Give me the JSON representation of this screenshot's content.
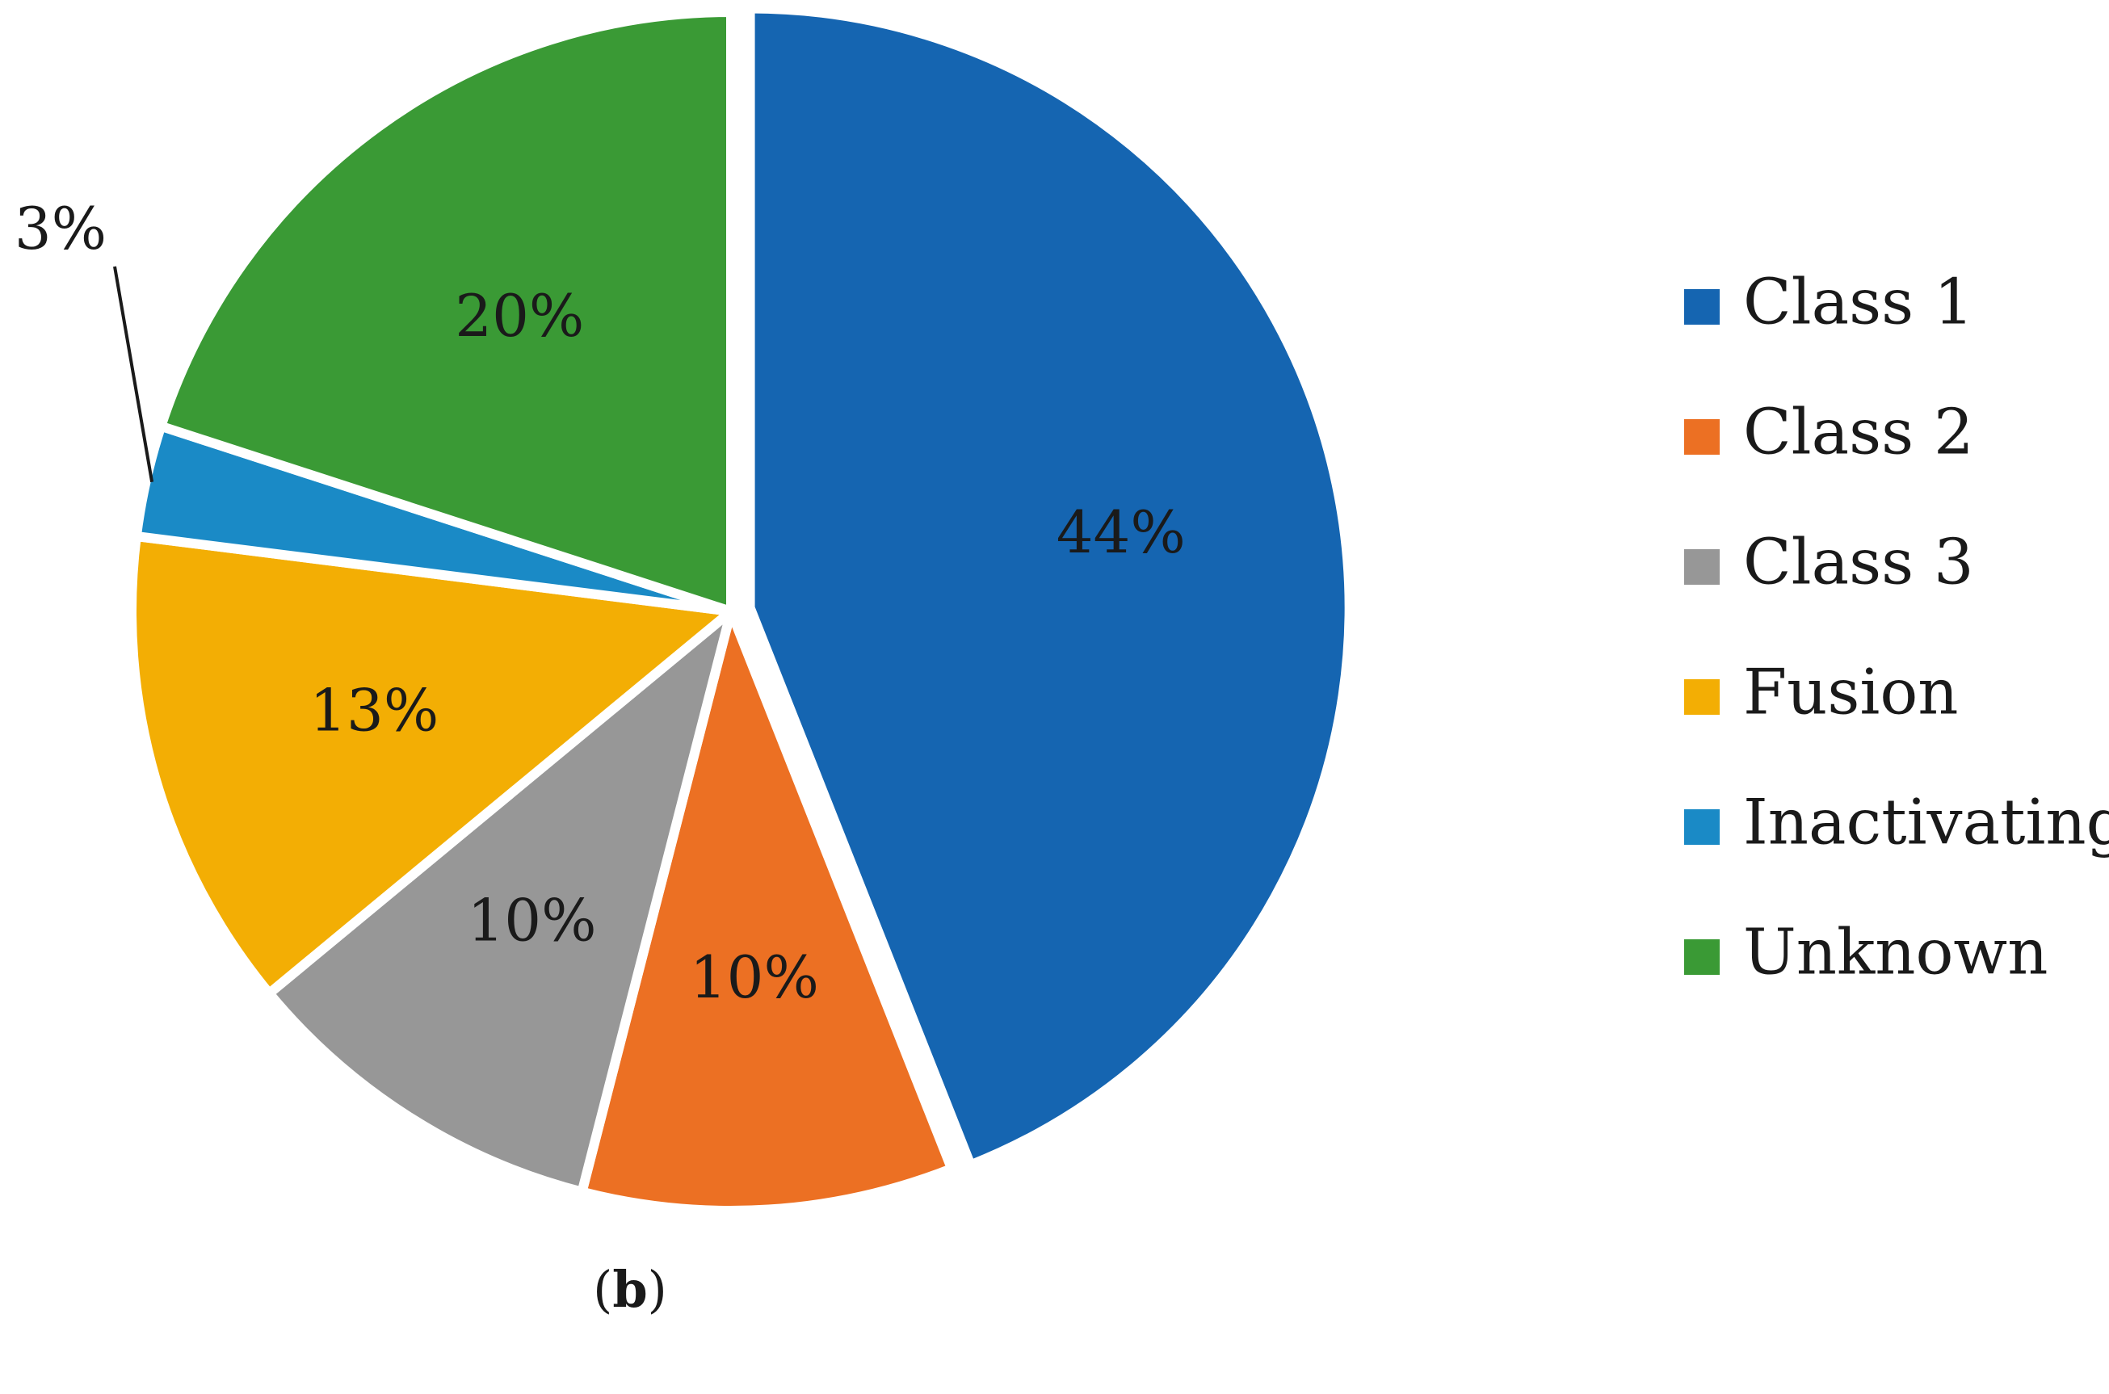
{
  "chart_data": {
    "type": "pie",
    "slices": [
      {
        "name": "Class 1",
        "value": 44,
        "label": "44%",
        "color": "#1565B1"
      },
      {
        "name": "Class 2",
        "value": 10,
        "label": "10%",
        "color": "#EC7023"
      },
      {
        "name": "Class 3",
        "value": 10,
        "label": "10%",
        "color": "#979797"
      },
      {
        "name": "Fusion",
        "value": 13,
        "label": "13%",
        "color": "#F3AE04"
      },
      {
        "name": "Inactivating",
        "value": 3,
        "label": "3%",
        "color": "#1A8AC6"
      },
      {
        "name": "Unknown",
        "value": 20,
        "label": "20%",
        "color": "#3A9A35"
      }
    ],
    "start_angle": "12 o'clock",
    "direction": "clockwise",
    "legend_placement": "right"
  },
  "caption": {
    "open": "(",
    "letter": "b",
    "close": ")"
  }
}
